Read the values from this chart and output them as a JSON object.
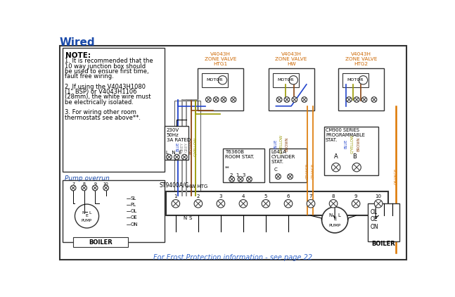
{
  "title": "Wired",
  "bg": "#ffffff",
  "border": "#222222",
  "blue": "#1a4aaa",
  "orange_label": "#cc6600",
  "footer_blue": "#3366cc",
  "note_lines": [
    "NOTE:",
    "1. It is recommended that the",
    "10 way junction box should",
    "be used to ensure first time,",
    "fault free wiring.",
    "",
    "2. If using the V4043H1080",
    "(1\" BSP) or V4043H1106",
    "(28mm), the white wire must",
    "be electrically isolated.",
    "",
    "3. For wiring other room",
    "thermostats see above**."
  ],
  "valve_labels": [
    "V4043H\nZONE VALVE\nHTG1",
    "V4043H\nZONE VALVE\nHW",
    "V4043H\nZONE VALVE\nHTG2"
  ],
  "footer": "For Frost Protection information - see page 22",
  "wire_grey": "#888888",
  "wire_blue": "#2244cc",
  "wire_brown": "#8B4513",
  "wire_gyellow": "#999900",
  "wire_orange": "#dd7700",
  "wire_black": "#111111"
}
